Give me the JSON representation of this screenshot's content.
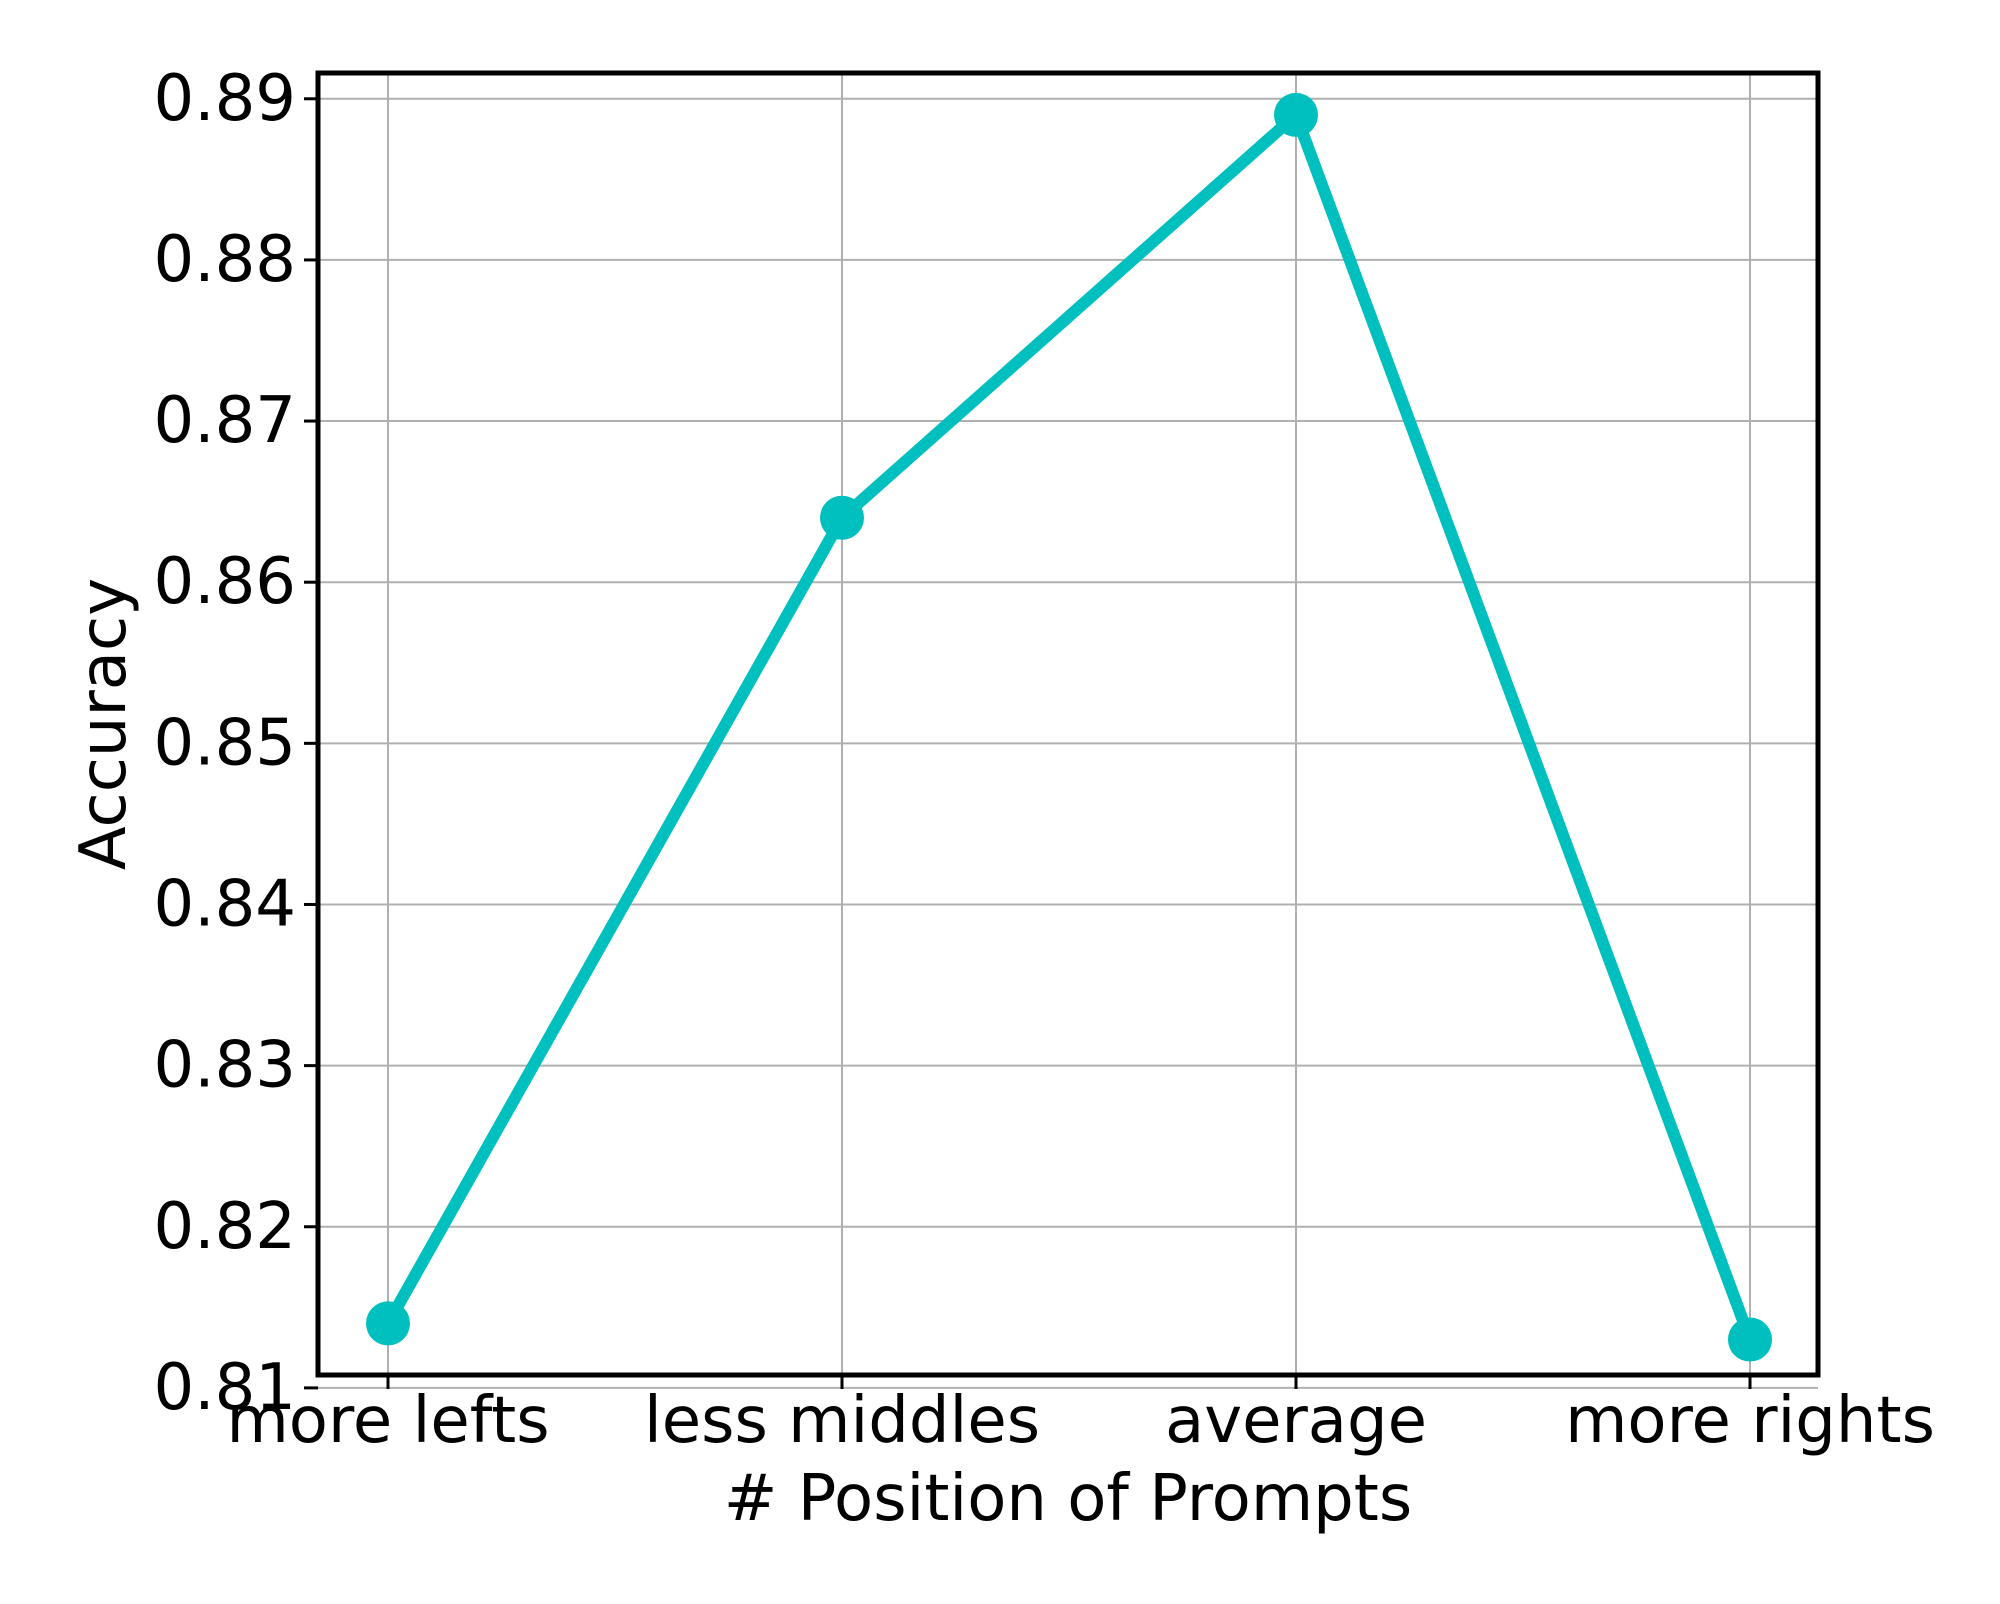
{
  "chart_data": {
    "type": "line",
    "title": "",
    "xlabel": "# Position of Prompts",
    "ylabel": "Accuracy",
    "categories": [
      "more lefts",
      "less middles",
      "average",
      "more rights"
    ],
    "series": [
      {
        "values": [
          0.814,
          0.864,
          0.889,
          0.813
        ],
        "color": "#00BFBF",
        "marker": "circle"
      }
    ],
    "yticks": [
      "0.81",
      "0.82",
      "0.83",
      "0.84",
      "0.85",
      "0.86",
      "0.87",
      "0.88",
      "0.89"
    ],
    "ylim": [
      0.8108,
      0.8916
    ],
    "grid": true
  }
}
